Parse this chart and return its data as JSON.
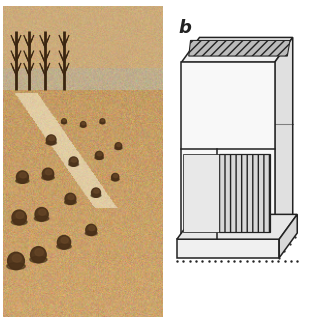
{
  "background_color": "#ffffff",
  "label_b": "b",
  "label_b_fontsize": 13,
  "fig_width": 3.2,
  "fig_height": 3.2,
  "fig_dpi": 100,
  "photo_base_color": [
    0.78,
    0.62,
    0.4
  ],
  "photo_light_color": [
    0.87,
    0.72,
    0.52
  ],
  "photo_dark_color": [
    0.65,
    0.48,
    0.28
  ],
  "wall_color": [
    0.75,
    0.68,
    0.55
  ],
  "sky_color": [
    0.8,
    0.67,
    0.48
  ],
  "mound_color": "#4a3018",
  "mound_highlight": "#6a4828",
  "tree_color": "#3a2510",
  "diagram_line_color": "#222222",
  "diagram_bg": "#ffffff",
  "hatch_color": "#555555",
  "panel_gray": "#aaaaaa",
  "diagram_lw": 1.1
}
